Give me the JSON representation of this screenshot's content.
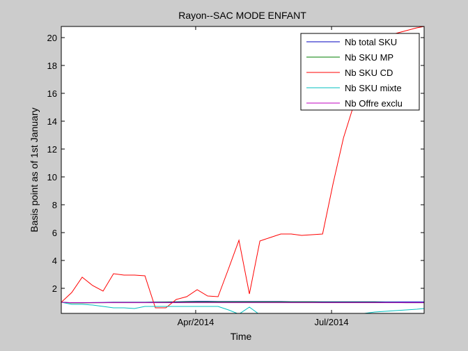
{
  "chart_data": {
    "type": "line",
    "title": "Rayon--SAC MODE ENFANT",
    "xlabel": "Time",
    "ylabel": "Basis point as of 1st January",
    "xlim": [
      "2014-01-01",
      "2014-09-01"
    ],
    "ylim": [
      0.2,
      20.8
    ],
    "yticks": [
      2,
      4,
      6,
      8,
      10,
      12,
      14,
      16,
      18,
      20
    ],
    "xticks": [
      {
        "label": "Apr/2014",
        "date": "2014-04-01"
      },
      {
        "label": "Jul/2014",
        "date": "2014-07-01"
      }
    ],
    "legend_position": "top-right",
    "x": [
      "2014-01-01",
      "2014-01-08",
      "2014-01-15",
      "2014-01-22",
      "2014-01-29",
      "2014-02-05",
      "2014-02-12",
      "2014-02-19",
      "2014-02-26",
      "2014-03-05",
      "2014-03-12",
      "2014-03-19",
      "2014-03-26",
      "2014-04-02",
      "2014-04-09",
      "2014-04-16",
      "2014-04-23",
      "2014-04-30",
      "2014-05-07",
      "2014-05-14",
      "2014-05-21",
      "2014-05-28",
      "2014-06-04",
      "2014-06-11",
      "2014-06-18",
      "2014-06-25",
      "2014-07-02",
      "2014-07-09",
      "2014-07-16",
      "2014-07-23",
      "2014-07-30",
      "2014-08-06",
      "2014-08-13",
      "2014-08-20",
      "2014-08-27",
      "2014-09-01"
    ],
    "series": [
      {
        "name": "Nb total SKU",
        "color": "#0000bf",
        "values": [
          1,
          0.97,
          0.97,
          0.98,
          0.99,
          1,
          1,
          1,
          1,
          1.01,
          1.02,
          1.03,
          1.05,
          1.06,
          1.06,
          1.05,
          1.05,
          1.05,
          1.05,
          1.05,
          1.05,
          1.05,
          1.04,
          1.04,
          1.04,
          1.03,
          1.03,
          1.03,
          1.03,
          1.03,
          1.03,
          1.02,
          1.02,
          1.02,
          1.02,
          1.02
        ]
      },
      {
        "name": "Nb SKU MP",
        "color": "#007f00",
        "values": [
          1,
          0.95,
          0.95,
          0.96,
          0.97,
          0.98,
          0.98,
          0.98,
          0.98,
          0.99,
          1,
          1,
          1.02,
          1.02,
          1.02,
          1.02,
          1.02,
          1.02,
          1.02,
          1.02,
          1.02,
          1.02,
          1.01,
          1.01,
          1.01,
          1.0,
          1.0,
          1.0,
          1.0,
          1.0,
          1.0,
          0.98,
          0.98,
          0.97,
          0.97,
          0.97
        ]
      },
      {
        "name": "Nb SKU CD",
        "color": "#ff0000",
        "values": [
          1,
          1.7,
          2.8,
          2.2,
          1.8,
          3.05,
          2.95,
          2.95,
          2.9,
          0.6,
          0.6,
          1.2,
          1.4,
          1.9,
          1.45,
          1.4,
          3.4,
          5.45,
          1.6,
          5.4,
          5.65,
          5.9,
          5.9,
          5.8,
          5.85,
          5.9,
          9.5,
          12.8,
          15.2,
          17.3,
          18.8,
          19.7,
          20.3,
          20.5,
          20.7,
          20.8
        ]
      },
      {
        "name": "Nb SKU mixte",
        "color": "#00bfbf",
        "values": [
          1,
          0.85,
          0.85,
          0.8,
          0.7,
          0.6,
          0.6,
          0.55,
          0.7,
          0.7,
          0.7,
          0.7,
          0.7,
          0.7,
          0.7,
          0.7,
          0.45,
          0.15,
          0.65,
          0.1,
          0.1,
          0.15,
          0.15,
          0.15,
          0.15,
          0.15,
          0.15,
          0.15,
          0.15,
          0.2,
          0.3,
          0.35,
          0.4,
          0.45,
          0.5,
          0.55
        ]
      },
      {
        "name": "Nb Offre exclu",
        "color": "#bf00bf",
        "values": [
          1,
          0.97,
          0.97,
          0.97,
          0.97,
          0.97,
          0.97,
          0.97,
          0.97,
          0.97,
          0.97,
          0.97,
          0.97,
          0.97,
          0.97,
          0.97,
          0.97,
          0.97,
          0.97,
          0.97,
          0.97,
          0.97,
          0.97,
          0.97,
          0.97,
          0.97,
          0.97,
          0.97,
          0.97,
          0.97,
          0.97,
          0.97,
          0.97,
          0.97,
          0.97,
          0.97
        ]
      }
    ]
  }
}
